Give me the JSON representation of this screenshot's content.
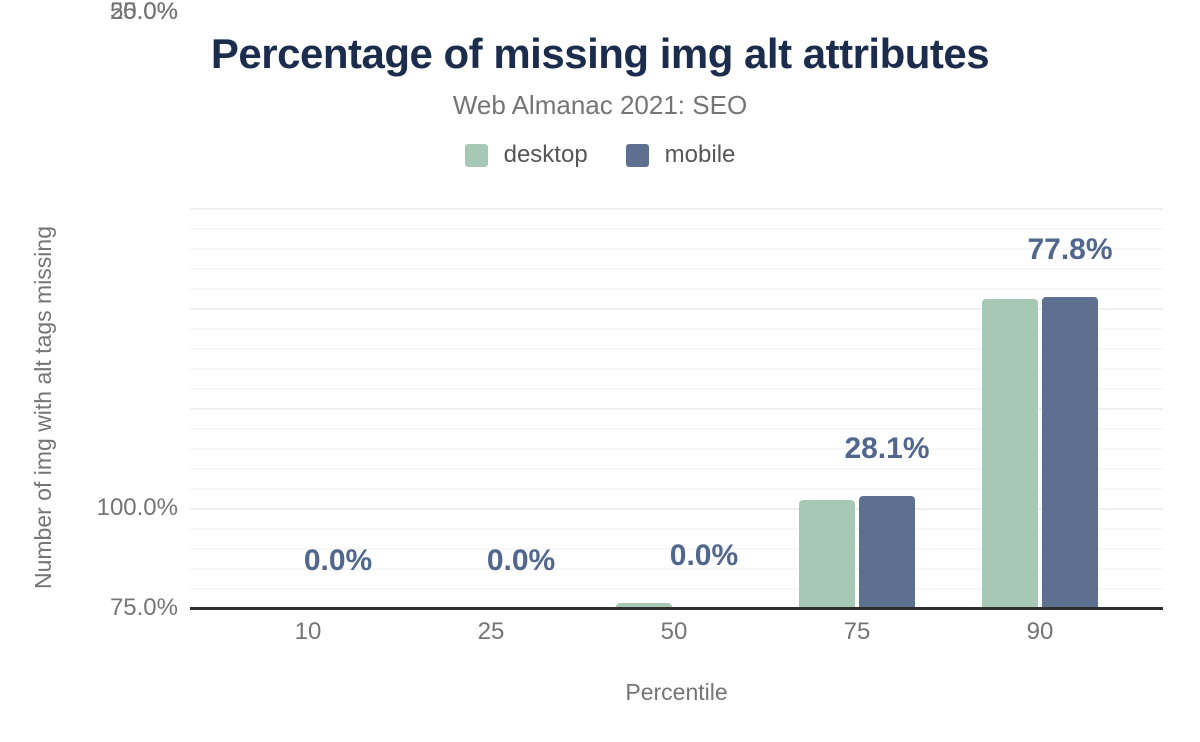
{
  "chart_data": {
    "type": "bar",
    "title": "Percentage of missing img alt attributes",
    "subtitle": "Web Almanac 2021: SEO",
    "xlabel": "Percentile",
    "ylabel": "Number of img with alt tags missing",
    "categories": [
      "10",
      "25",
      "50",
      "75",
      "90"
    ],
    "series": [
      {
        "name": "desktop",
        "color": "#a7c8b4",
        "values": [
          0.0,
          0.0,
          1.2,
          27.0,
          77.2
        ]
      },
      {
        "name": "mobile",
        "color": "#5d7090",
        "values": [
          0.0,
          0.0,
          0.0,
          28.1,
          77.8
        ]
      }
    ],
    "data_labels": [
      "0.0%",
      "0.0%",
      "0.0%",
      "28.1%",
      "77.8%"
    ],
    "ytick_labels": [
      "100.0%",
      "75.0%",
      "50.0%",
      "25.0%",
      "0.0%"
    ],
    "ylim": [
      0,
      100
    ],
    "grid": "horizontal, minor every 5%, major every 25%",
    "legend_position": "top-center"
  },
  "colors": {
    "title_text": "#1b2c4d",
    "data_label_text": "#52678e",
    "axis_text": "#757575",
    "legend_text": "#565656",
    "axis_line": "#2f2f2f",
    "background": "#ffffff"
  }
}
